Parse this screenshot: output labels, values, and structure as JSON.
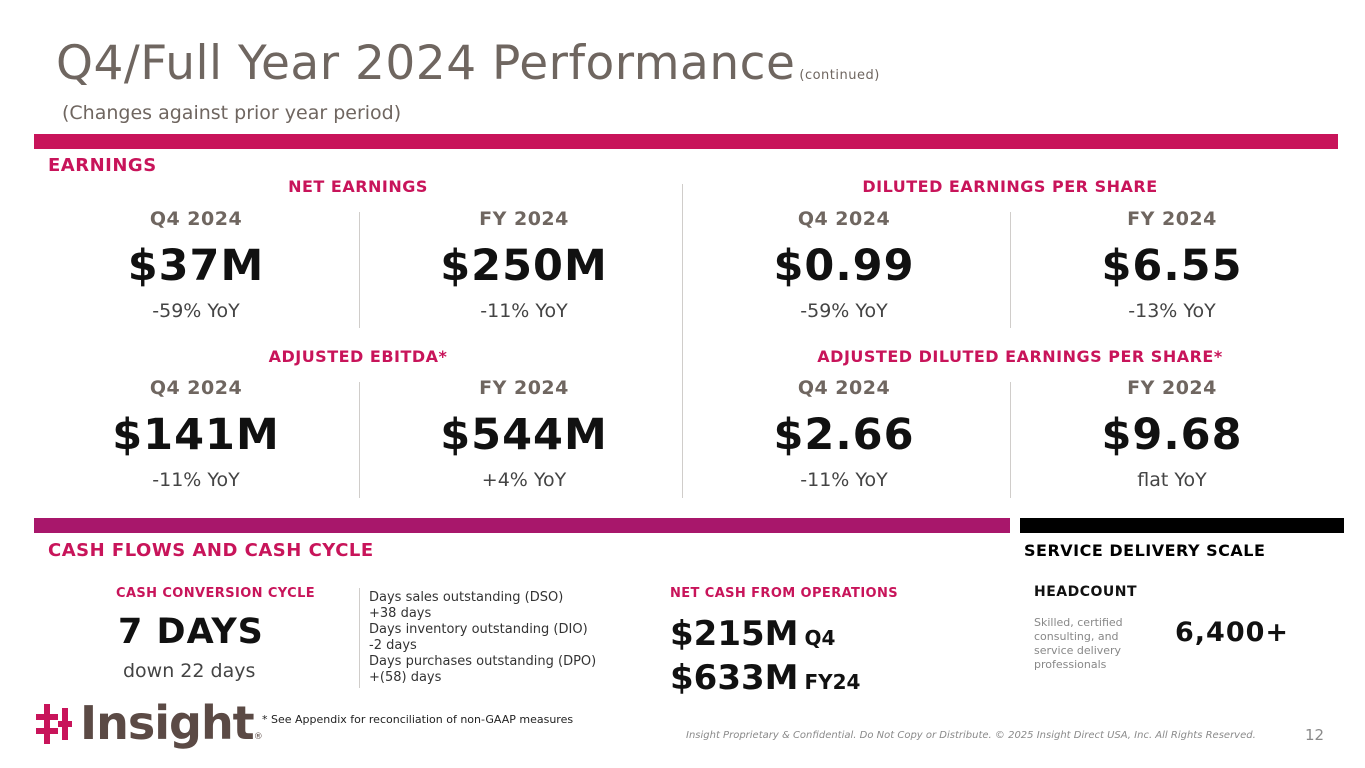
{
  "header": {
    "title": "Q4/Full Year 2024 Performance",
    "title_note": "(continued)",
    "subtitle": "(Changes against prior year period)"
  },
  "earnings": {
    "section_label": "EARNINGS",
    "net_earnings": {
      "label": "NET EARNINGS",
      "q4": {
        "period": "Q4 2024",
        "value": "$37M",
        "yoy": "-59% YoY"
      },
      "fy": {
        "period": "FY 2024",
        "value": "$250M",
        "yoy": "-11% YoY"
      }
    },
    "diluted_eps": {
      "label": "DILUTED EARNINGS PER SHARE",
      "q4": {
        "period": "Q4 2024",
        "value": "$0.99",
        "yoy": "-59% YoY"
      },
      "fy": {
        "period": "FY 2024",
        "value": "$6.55",
        "yoy": "-13% YoY"
      }
    },
    "adjusted_ebitda": {
      "label": "ADJUSTED EBITDA*",
      "q4": {
        "period": "Q4 2024",
        "value": "$141M",
        "yoy": "-11% YoY"
      },
      "fy": {
        "period": "FY 2024",
        "value": "$544M",
        "yoy": "+4% YoY"
      }
    },
    "adjusted_diluted_eps": {
      "label": "ADJUSTED DILUTED EARNINGS PER SHARE*",
      "q4": {
        "period": "Q4 2024",
        "value": "$2.66",
        "yoy": "-11% YoY"
      },
      "fy": {
        "period": "FY 2024",
        "value": "$9.68",
        "yoy": "flat YoY"
      }
    }
  },
  "cash": {
    "section_label": "CASH FLOWS AND CASH CYCLE",
    "ccc_label": "CASH CONVERSION CYCLE",
    "ccc_value": "7 DAYS",
    "ccc_change": "down 22 days",
    "details": [
      "Days sales outstanding (DSO)",
      "+38 days",
      "Days inventory outstanding (DIO)",
      "-2 days",
      "Days purchases outstanding (DPO)",
      "+(58) days"
    ],
    "ops_label": "NET CASH FROM OPERATIONS",
    "ops_q4_value": "$215M",
    "ops_q4_tag": "Q4",
    "ops_fy_value": "$633M",
    "ops_fy_tag": "FY24"
  },
  "service": {
    "section_label": "SERVICE DELIVERY SCALE",
    "headcount_label": "HEADCOUNT",
    "headcount_desc": "Skilled, certified consulting, and service delivery professionals",
    "headcount_value": "6,400+"
  },
  "footer": {
    "logo_text": "Insight",
    "logo_registered": "®",
    "footnote": "*  See Appendix for reconciliation of non-GAAP measures",
    "legal": "Insight Proprietary & Confidential. Do Not Copy or Distribute. © 2025 Insight Direct USA, Inc. All Rights Reserved.",
    "page_number": "12"
  },
  "colors": {
    "accent": "#c8145a",
    "accent_dark": "#a8176b",
    "title_gray": "#6f6660",
    "black": "#000000"
  }
}
